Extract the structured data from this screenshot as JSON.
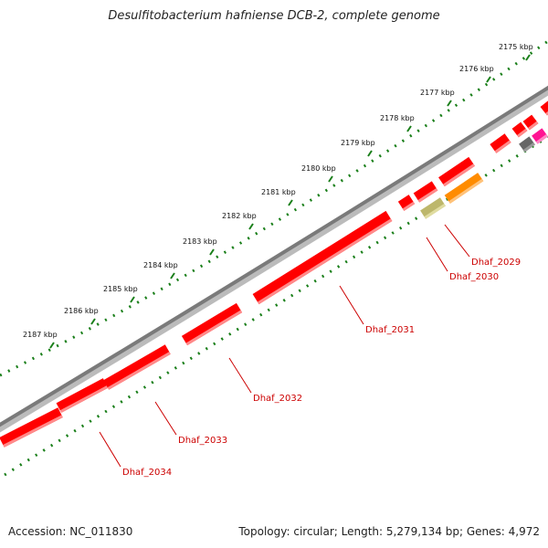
{
  "title": "Desulfitobacterium hafniense DCB-2, complete genome",
  "accession": "Accession: NC_011830",
  "summary": "Topology: circular; Length: 5,279,134 bp; Genes: 4,972",
  "colors": {
    "backbone": "#7a7a7a",
    "tick": "#1a7f1a",
    "gene_cds": "#ff0000",
    "gene_cds_shade": "#ff8a8a",
    "gene_label": "#cc0000",
    "gene_orange": "#ff8c00",
    "gene_khaki": "#bdb76b",
    "gene_magenta": "#ff1493",
    "gene_gray": "#666666"
  },
  "kbp_ticks": [
    "2175 kbp",
    "2176 kbp",
    "2177 kbp",
    "2178 kbp",
    "2179 kbp",
    "2180 kbp",
    "2181 kbp",
    "2182 kbp",
    "2183 kbp",
    "2184 kbp",
    "2185 kbp",
    "2186 kbp",
    "2187 kbp"
  ],
  "gene_labels": [
    "Dhaf_2029",
    "Dhaf_2030",
    "Dhaf_2031",
    "Dhaf_2032",
    "Dhaf_2033",
    "Dhaf_2034"
  ]
}
